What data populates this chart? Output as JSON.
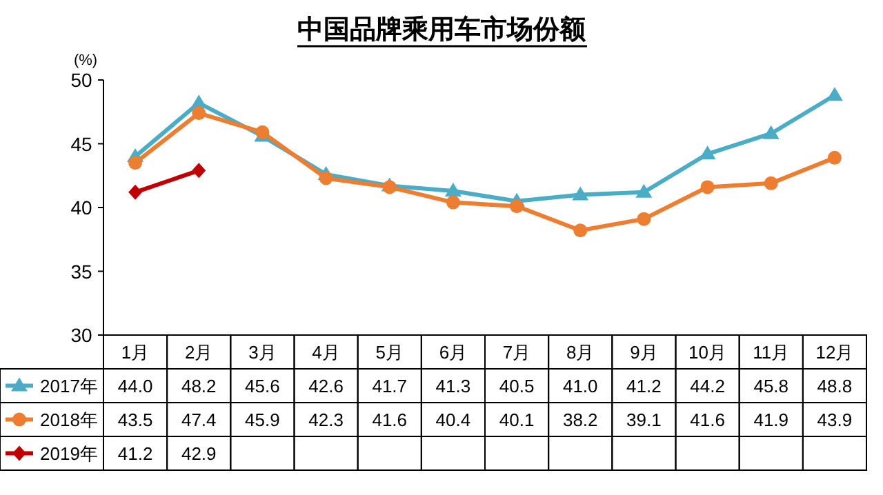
{
  "chart_data": {
    "type": "line",
    "title": "中国品牌乘用车市场份额",
    "ylabel": "(%)",
    "categories": [
      "1月",
      "2月",
      "3月",
      "4月",
      "5月",
      "6月",
      "7月",
      "8月",
      "9月",
      "10月",
      "11月",
      "12月"
    ],
    "ylim": [
      30,
      50
    ],
    "yticks": [
      30,
      35,
      40,
      45,
      50
    ],
    "legend": "bottom",
    "series": [
      {
        "name": "2017年",
        "color": "#4bacc6",
        "marker": "triangle",
        "values": [
          44.0,
          48.2,
          45.6,
          42.6,
          41.7,
          41.3,
          40.5,
          41.0,
          41.2,
          44.2,
          45.8,
          48.8
        ],
        "value_labels": [
          "44.0",
          "48.2",
          "45.6",
          "42.6",
          "41.7",
          "41.3",
          "40.5",
          "41.0",
          "41.2",
          "44.2",
          "45.8",
          "48.8"
        ]
      },
      {
        "name": "2018年",
        "color": "#ed7d31",
        "marker": "circle",
        "values": [
          43.5,
          47.4,
          45.9,
          42.3,
          41.6,
          40.4,
          40.1,
          38.2,
          39.1,
          41.6,
          41.9,
          43.9
        ],
        "value_labels": [
          "43.5",
          "47.4",
          "45.9",
          "42.3",
          "41.6",
          "40.4",
          "40.1",
          "38.2",
          "39.1",
          "41.6",
          "41.9",
          "43.9"
        ]
      },
      {
        "name": "2019年",
        "color": "#c00000",
        "marker": "diamond",
        "values": [
          41.2,
          42.9,
          null,
          null,
          null,
          null,
          null,
          null,
          null,
          null,
          null,
          null
        ],
        "value_labels": [
          "41.2",
          "42.9",
          null,
          null,
          null,
          null,
          null,
          null,
          null,
          null,
          null,
          null
        ]
      }
    ]
  }
}
